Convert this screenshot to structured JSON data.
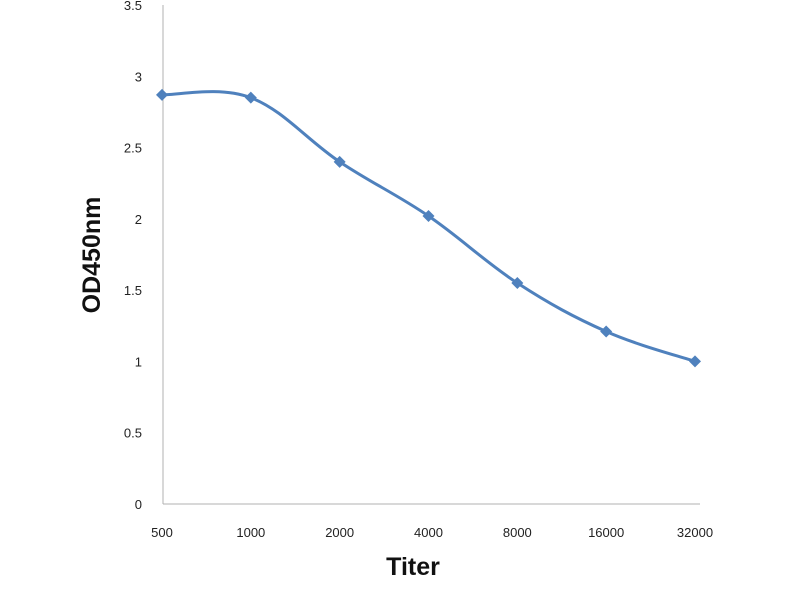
{
  "chart_data": {
    "type": "line",
    "title": "",
    "xlabel": "Titer",
    "ylabel": "OD450nm",
    "categories": [
      "500",
      "1000",
      "2000",
      "4000",
      "8000",
      "16000",
      "32000"
    ],
    "series": [
      {
        "values": [
          2.87,
          2.85,
          2.4,
          2.02,
          1.55,
          1.21,
          1.0
        ],
        "color": "#4F81BD",
        "marker": "diamond"
      }
    ],
    "ylim": [
      0,
      3.5
    ],
    "yticks": [
      "0",
      "0.5",
      "1",
      "1.5",
      "2",
      "2.5",
      "3",
      "3.5"
    ],
    "grid": false,
    "legend": "none"
  }
}
